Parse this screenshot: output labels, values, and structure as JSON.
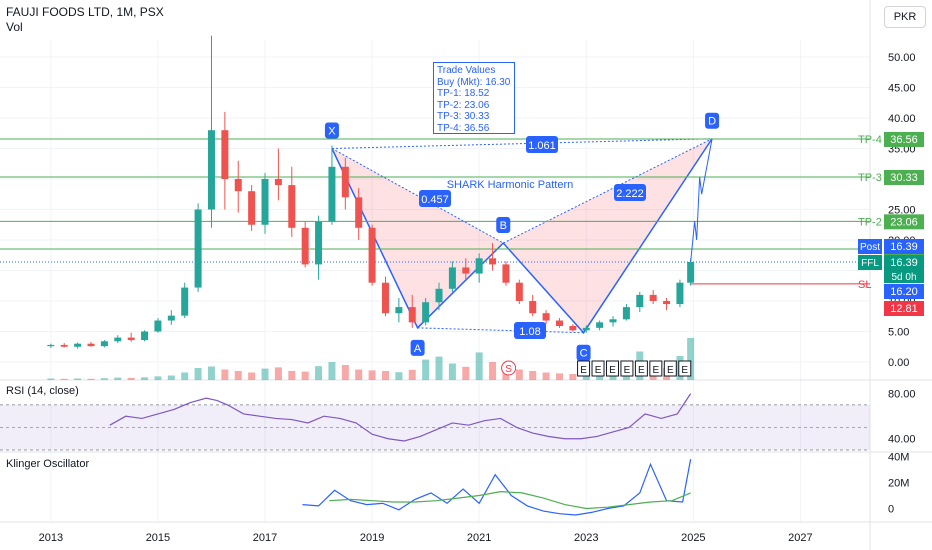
{
  "header": {
    "title": "FAUJI FOODS LTD, 1M, PSX",
    "volume_label": "Vol",
    "currency": "PKR"
  },
  "trade_box": {
    "title": "Trade Values",
    "lines": [
      "Buy (Mkt): 16.30",
      "TP-1: 18.52",
      "TP-2: 23.06",
      "TP-3: 30.33",
      "TP-4: 36.56"
    ]
  },
  "pattern_label": "SHARK Harmonic Pattern",
  "colors": {
    "up": "#26a69a",
    "down": "#ef5350",
    "pattern": "#2962ff",
    "target": "#4caf50",
    "stop": "#f23645",
    "rsi": "#7e57c2",
    "klinger": "#2962ff",
    "klinger_signal": "#4caf50"
  },
  "chart_data": [
    {
      "type": "candlestick",
      "title": "FAUJI FOODS LTD, 1M, PSX",
      "ylim": [
        -2,
        55
      ],
      "y_ticks": [
        "0.00",
        "5.00",
        "10.00",
        "15.00",
        "20.00",
        "25.00",
        "30.00",
        "35.00",
        "40.00",
        "45.00",
        "50.00"
      ],
      "x_ticks": [
        "2013",
        "2015",
        "2017",
        "2019",
        "2021",
        "2023",
        "2025",
        "2027"
      ],
      "x_tick_values": [
        2013,
        2015,
        2017,
        2019,
        2021,
        2023,
        2025,
        2027
      ],
      "xlim": [
        2012.05,
        2028.3
      ],
      "candles": [
        {
          "t": 2013.0,
          "o": 2.6,
          "h": 3.0,
          "l": 2.3,
          "c": 2.8
        },
        {
          "t": 2013.25,
          "o": 2.8,
          "h": 3.1,
          "l": 2.4,
          "c": 2.5
        },
        {
          "t": 2013.5,
          "o": 2.5,
          "h": 3.2,
          "l": 2.2,
          "c": 3.0
        },
        {
          "t": 2013.75,
          "o": 3.0,
          "h": 3.3,
          "l": 2.5,
          "c": 2.6
        },
        {
          "t": 2014.0,
          "o": 2.6,
          "h": 3.6,
          "l": 2.4,
          "c": 3.4
        },
        {
          "t": 2014.25,
          "o": 3.4,
          "h": 4.4,
          "l": 3.1,
          "c": 4.0
        },
        {
          "t": 2014.5,
          "o": 4.0,
          "h": 4.8,
          "l": 3.3,
          "c": 3.6
        },
        {
          "t": 2014.75,
          "o": 3.6,
          "h": 5.2,
          "l": 3.4,
          "c": 5.0
        },
        {
          "t": 2015.0,
          "o": 5.0,
          "h": 7.2,
          "l": 4.8,
          "c": 6.8
        },
        {
          "t": 2015.25,
          "o": 6.8,
          "h": 8.5,
          "l": 6.1,
          "c": 7.6
        },
        {
          "t": 2015.5,
          "o": 7.6,
          "h": 13.0,
          "l": 7.2,
          "c": 12.2
        },
        {
          "t": 2015.75,
          "o": 12.2,
          "h": 26.0,
          "l": 11.5,
          "c": 25.0
        },
        {
          "t": 2016.0,
          "o": 25.0,
          "h": 53.5,
          "l": 22.0,
          "c": 38.0
        },
        {
          "t": 2016.25,
          "o": 38.0,
          "h": 41.0,
          "l": 25.0,
          "c": 30.0
        },
        {
          "t": 2016.5,
          "o": 30.0,
          "h": 33.0,
          "l": 24.5,
          "c": 28.0
        },
        {
          "t": 2016.75,
          "o": 28.0,
          "h": 29.0,
          "l": 21.5,
          "c": 22.5
        },
        {
          "t": 2017.0,
          "o": 22.5,
          "h": 31.0,
          "l": 21.0,
          "c": 30.0
        },
        {
          "t": 2017.25,
          "o": 30.0,
          "h": 35.0,
          "l": 26.5,
          "c": 29.0
        },
        {
          "t": 2017.5,
          "o": 29.0,
          "h": 32.0,
          "l": 20.5,
          "c": 22.0
        },
        {
          "t": 2017.75,
          "o": 22.0,
          "h": 23.0,
          "l": 15.5,
          "c": 16.0
        },
        {
          "t": 2018.0,
          "o": 16.0,
          "h": 24.0,
          "l": 13.5,
          "c": 23.0
        },
        {
          "t": 2018.25,
          "o": 23.0,
          "h": 35.5,
          "l": 22.5,
          "c": 32.0
        },
        {
          "t": 2018.5,
          "o": 32.0,
          "h": 33.5,
          "l": 25.0,
          "c": 27.0
        },
        {
          "t": 2018.75,
          "o": 27.0,
          "h": 28.5,
          "l": 20.0,
          "c": 22.0
        },
        {
          "t": 2019.0,
          "o": 22.0,
          "h": 22.5,
          "l": 12.5,
          "c": 13.0
        },
        {
          "t": 2019.25,
          "o": 13.0,
          "h": 14.0,
          "l": 7.5,
          "c": 8.0
        },
        {
          "t": 2019.5,
          "o": 8.0,
          "h": 10.5,
          "l": 6.5,
          "c": 9.0
        },
        {
          "t": 2019.75,
          "o": 9.0,
          "h": 11.0,
          "l": 5.6,
          "c": 6.5
        },
        {
          "t": 2020.0,
          "o": 6.5,
          "h": 10.5,
          "l": 6.0,
          "c": 9.8
        },
        {
          "t": 2020.25,
          "o": 9.8,
          "h": 13.0,
          "l": 8.5,
          "c": 12.0
        },
        {
          "t": 2020.5,
          "o": 12.0,
          "h": 16.5,
          "l": 11.5,
          "c": 15.5
        },
        {
          "t": 2020.75,
          "o": 15.5,
          "h": 17.0,
          "l": 13.5,
          "c": 14.5
        },
        {
          "t": 2021.0,
          "o": 14.5,
          "h": 17.8,
          "l": 13.0,
          "c": 17.0
        },
        {
          "t": 2021.25,
          "o": 17.0,
          "h": 19.5,
          "l": 15.0,
          "c": 16.0
        },
        {
          "t": 2021.5,
          "o": 16.0,
          "h": 16.5,
          "l": 12.5,
          "c": 13.0
        },
        {
          "t": 2021.75,
          "o": 13.0,
          "h": 13.5,
          "l": 9.5,
          "c": 10.0
        },
        {
          "t": 2022.0,
          "o": 10.0,
          "h": 11.0,
          "l": 7.5,
          "c": 8.0
        },
        {
          "t": 2022.25,
          "o": 8.0,
          "h": 8.5,
          "l": 6.2,
          "c": 6.8
        },
        {
          "t": 2022.5,
          "o": 6.8,
          "h": 7.2,
          "l": 5.6,
          "c": 5.9
        },
        {
          "t": 2022.75,
          "o": 5.9,
          "h": 6.2,
          "l": 5.0,
          "c": 5.2
        },
        {
          "t": 2023.0,
          "o": 5.2,
          "h": 6.0,
          "l": 4.8,
          "c": 5.6
        },
        {
          "t": 2023.25,
          "o": 5.6,
          "h": 6.8,
          "l": 5.2,
          "c": 6.5
        },
        {
          "t": 2023.5,
          "o": 6.5,
          "h": 7.5,
          "l": 5.8,
          "c": 7.0
        },
        {
          "t": 2023.75,
          "o": 7.0,
          "h": 9.5,
          "l": 6.8,
          "c": 9.0
        },
        {
          "t": 2024.0,
          "o": 9.0,
          "h": 11.5,
          "l": 8.2,
          "c": 11.0
        },
        {
          "t": 2024.25,
          "o": 11.0,
          "h": 11.8,
          "l": 9.5,
          "c": 10.0
        },
        {
          "t": 2024.5,
          "o": 10.0,
          "h": 10.5,
          "l": 8.5,
          "c": 9.5
        },
        {
          "t": 2024.75,
          "o": 9.5,
          "h": 13.5,
          "l": 9.0,
          "c": 13.0
        },
        {
          "t": 2024.95,
          "o": 13.0,
          "h": 17.0,
          "l": 12.5,
          "c": 16.39
        }
      ],
      "volume": [
        0.5,
        0.4,
        0.5,
        0.4,
        0.6,
        0.8,
        0.7,
        0.9,
        1.2,
        1.5,
        2.5,
        4.0,
        4.5,
        3.5,
        3.0,
        2.5,
        3.8,
        4.2,
        3.0,
        2.8,
        4.6,
        6.0,
        5.0,
        3.5,
        3.2,
        3.0,
        2.6,
        3.4,
        6.8,
        7.8,
        5.5,
        4.4,
        9.2,
        6.0,
        4.0,
        3.5,
        3.0,
        2.5,
        2.2,
        2.0,
        2.4,
        3.0,
        3.2,
        4.5,
        9.5,
        5.5,
        4.0,
        8.0,
        14.0
      ],
      "pattern": {
        "name": "SHARK Harmonic Pattern",
        "points": [
          {
            "label": "X",
            "t": 2018.25,
            "v": 35.0
          },
          {
            "label": "A",
            "t": 2019.85,
            "v": 5.6
          },
          {
            "label": "B",
            "t": 2021.45,
            "v": 19.5
          },
          {
            "label": "C",
            "t": 2022.95,
            "v": 4.8
          },
          {
            "label": "D",
            "t": 2025.35,
            "v": 36.6
          }
        ],
        "ratios": [
          "0.457",
          "1.061",
          "2.222",
          "1.08"
        ]
      },
      "levels": [
        {
          "label": "TP-4",
          "value": 36.56,
          "color": "#4caf50"
        },
        {
          "label": "TP-3",
          "value": 30.33,
          "color": "#4caf50"
        },
        {
          "label": "TP-2",
          "value": 23.06,
          "color": "#4caf50"
        },
        {
          "label": "",
          "value": 18.52,
          "color": "#4caf50"
        },
        {
          "label": "SL",
          "value": 12.81,
          "color": "#f23645"
        }
      ],
      "price_tags": [
        {
          "text": "36.56",
          "value": 36.56,
          "color": "#4caf50"
        },
        {
          "text": "30.33",
          "value": 30.33,
          "color": "#4caf50"
        },
        {
          "text": "23.06",
          "value": 23.06,
          "color": "#4caf50"
        },
        {
          "text": "18.52",
          "value": 18.52,
          "color": "#4caf50"
        },
        {
          "text": "16.39",
          "value": 16.39,
          "color": "#2962ff",
          "label": "Post"
        },
        {
          "text": "16.39",
          "value": 16.39,
          "color": "#089981",
          "label": "FFL",
          "sub": "5d 0h"
        },
        {
          "text": "16.20",
          "value": 16.2,
          "color": "#2962ff"
        },
        {
          "text": "12.81",
          "value": 12.81,
          "color": "#f23645"
        }
      ],
      "earnings_markers": [
        "E",
        "E",
        "E",
        "E",
        "E",
        "E",
        "E",
        "E"
      ],
      "split_marker": "S"
    },
    {
      "type": "line",
      "title": "RSI (14, close)",
      "ylim": [
        30,
        85
      ],
      "y_ticks": [
        "80.00",
        "40.00"
      ],
      "y_tick_values": [
        80,
        40
      ],
      "band": [
        30,
        70
      ],
      "x": [
        2014.1,
        2014.4,
        2014.7,
        2015.0,
        2015.3,
        2015.6,
        2015.9,
        2016.1,
        2016.3,
        2016.6,
        2016.9,
        2017.2,
        2017.5,
        2017.8,
        2018.1,
        2018.4,
        2018.7,
        2019.0,
        2019.3,
        2019.6,
        2019.9,
        2020.2,
        2020.5,
        2020.8,
        2021.1,
        2021.4,
        2021.7,
        2022.0,
        2022.3,
        2022.6,
        2022.9,
        2023.2,
        2023.5,
        2023.8,
        2024.1,
        2024.4,
        2024.7,
        2024.95
      ],
      "values": [
        52,
        60,
        58,
        62,
        66,
        72,
        76,
        74,
        70,
        62,
        60,
        58,
        57,
        54,
        60,
        58,
        54,
        44,
        40,
        38,
        42,
        48,
        54,
        52,
        56,
        58,
        50,
        45,
        42,
        40,
        40,
        42,
        46,
        50,
        62,
        58,
        62,
        80
      ]
    },
    {
      "type": "line",
      "title": "Klinger Oscillator",
      "y_ticks": [
        "40M",
        "20M",
        "0"
      ],
      "y_tick_values": [
        40,
        20,
        0
      ],
      "ylim": [
        -5,
        45
      ],
      "series": [
        {
          "x": [
            2017.7,
            2018.0,
            2018.3,
            2018.6,
            2018.9,
            2019.2,
            2019.5,
            2019.8,
            2020.1,
            2020.4,
            2020.7,
            2021.0,
            2021.3,
            2021.6,
            2021.9,
            2022.2,
            2022.5,
            2022.8,
            2023.1,
            2023.4,
            2023.7,
            2024.0,
            2024.2,
            2024.5,
            2024.8,
            2024.95
          ],
          "values": [
            3,
            2,
            14,
            6,
            3,
            4,
            -1,
            7,
            12,
            4,
            15,
            4,
            26,
            10,
            2,
            -2,
            -4,
            -5,
            -3,
            0,
            2,
            12,
            34,
            6,
            5,
            38
          ]
        },
        {
          "x": [
            2018.2,
            2018.6,
            2019.0,
            2019.4,
            2019.8,
            2020.2,
            2020.6,
            2021.0,
            2021.4,
            2021.8,
            2022.2,
            2022.6,
            2023.0,
            2023.4,
            2023.8,
            2024.2,
            2024.6,
            2024.95
          ],
          "values": [
            6,
            7,
            6,
            5,
            5,
            6,
            8,
            10,
            13,
            12,
            8,
            3,
            0,
            1,
            3,
            5,
            6,
            12
          ]
        }
      ]
    }
  ]
}
